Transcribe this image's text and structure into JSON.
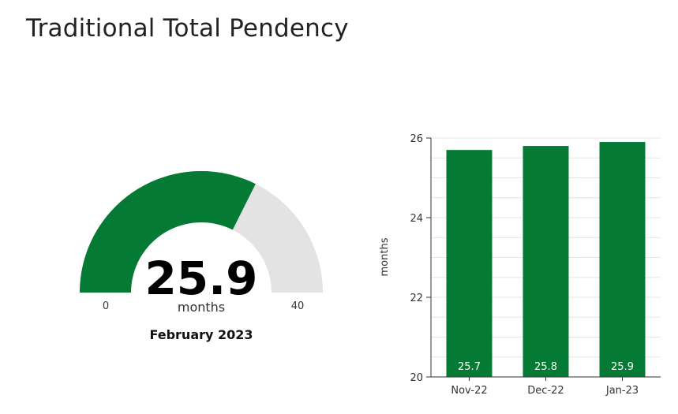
{
  "page": {
    "title": "Traditional Total Pendency"
  },
  "colors": {
    "fill": "#047a34",
    "track": "#e3e3e3",
    "gridline": "#e6e6e6",
    "axis": "#333333"
  },
  "chart_data": [
    {
      "type": "gauge",
      "value": 25.9,
      "value_label": "25.9",
      "unit": "months",
      "min": 0,
      "max": 40,
      "min_label": "0",
      "max_label": "40",
      "date_label": "February 2023"
    },
    {
      "type": "bar",
      "categories": [
        "Nov-22",
        "Dec-22",
        "Jan-23"
      ],
      "values": [
        25.7,
        25.8,
        25.9
      ],
      "data_labels": [
        "25.7",
        "25.8",
        "25.9"
      ],
      "ylabel": "months",
      "ylim": [
        20,
        26
      ],
      "yticks": [
        20,
        22,
        24,
        26
      ],
      "grid": true
    }
  ]
}
